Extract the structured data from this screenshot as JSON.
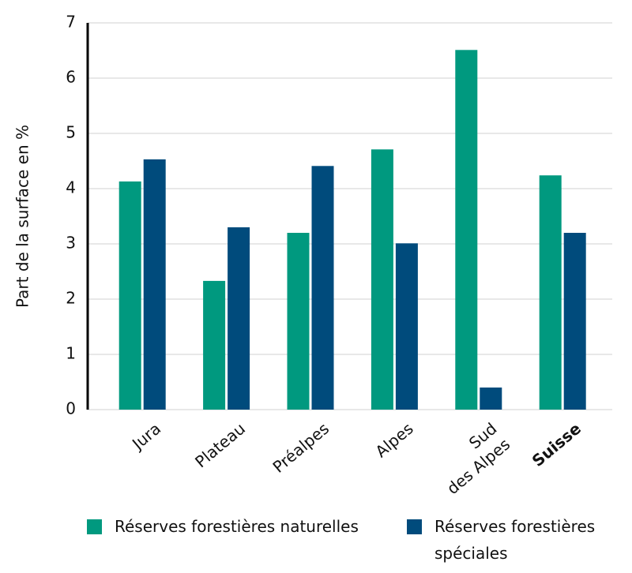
{
  "chart_data": {
    "type": "bar",
    "y_label": "Part de la surface en %",
    "categories": [
      "Jura",
      "Plateau",
      "Préalpes",
      "Alpes",
      "Sud\ndes Alpes",
      "Suisse"
    ],
    "series": [
      {
        "name": "Réserves forestières naturelles",
        "color": "#00997f",
        "values": [
          4.13,
          2.33,
          3.2,
          4.71,
          6.51,
          4.24
        ]
      },
      {
        "name": "Réserves forestières spéciales",
        "color": "#004b7c",
        "values": [
          4.53,
          3.3,
          4.41,
          3.01,
          0.4,
          3.2
        ]
      }
    ],
    "ylim": [
      0,
      7
    ],
    "yticks": [
      0,
      1,
      2,
      3,
      4,
      5,
      6,
      7
    ],
    "grid": true
  }
}
